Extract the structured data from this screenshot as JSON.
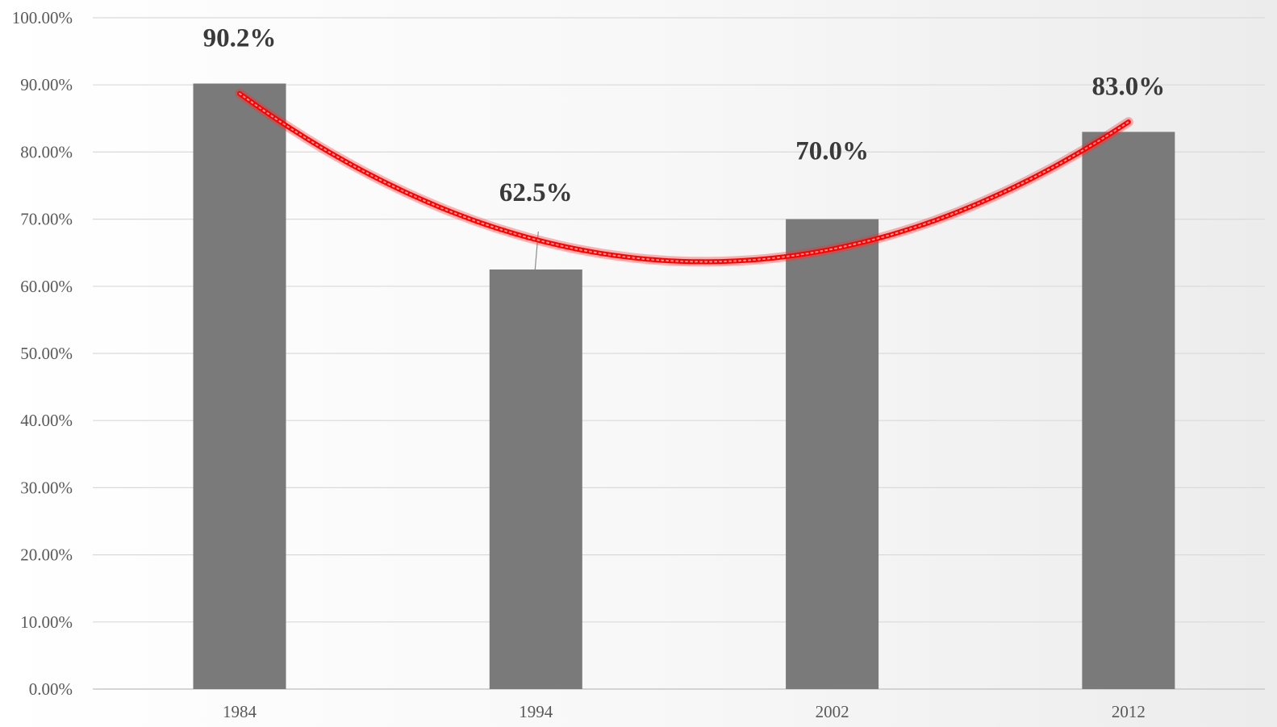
{
  "chart_data": {
    "type": "bar",
    "categories": [
      "1984",
      "1994",
      "2002",
      "2012"
    ],
    "series": [
      {
        "values": [
          90.2,
          62.5,
          70.0,
          83.0
        ],
        "color": "#7a7a7a"
      }
    ],
    "data_labels": [
      "90.2%",
      "62.5%",
      "70.0%",
      "83.0%"
    ],
    "trendline": {
      "type": "polynomial",
      "color": "#ff0000"
    },
    "yticks": [
      "0.00%",
      "10.00%",
      "20.00%",
      "30.00%",
      "40.00%",
      "50.00%",
      "60.00%",
      "70.00%",
      "80.00%",
      "90.00%",
      "100.00%"
    ],
    "ylim": [
      0,
      100
    ],
    "grid": true,
    "title": "",
    "xlabel": "",
    "ylabel": ""
  }
}
